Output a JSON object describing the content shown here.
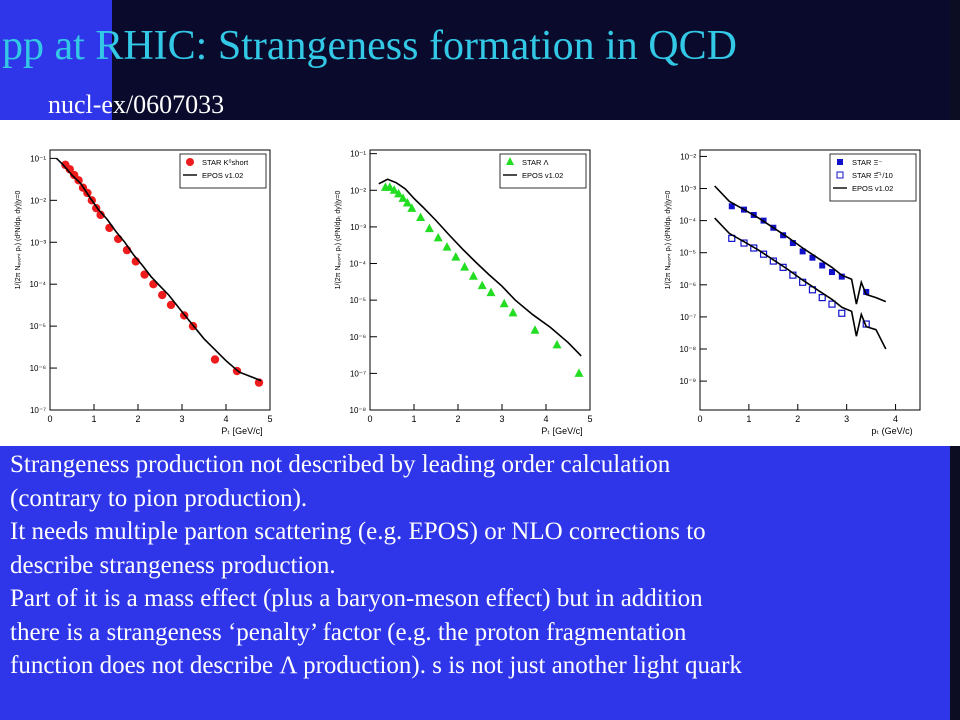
{
  "title": "pp at RHIC: Strangeness formation in QCD",
  "reference": "nucl-ex/0607033",
  "body_lines": [
    "Strangeness production not described by leading order calculation",
    "(contrary to pion production).",
    "It needs multiple parton scattering (e.g. EPOS) or NLO corrections  to",
    "describe strangeness production.",
    "Part of it is a mass effect (plus a baryon-meson effect) but in addition",
    "there is a strangeness ‘penalty’ factor (e.g. the proton fragmentation",
    "function does not describe Λ production). s is not just another light quark"
  ],
  "chart_data": [
    {
      "type": "scatter",
      "xlabel": "Pₜ [GeV/c]",
      "ylabel": "1/(2π Nₑᵥₑₙₜ pₜ) (d²N/dpₜ dy)|y=0",
      "xlim": [
        0,
        5
      ],
      "ylim_log10": [
        -7,
        -0.8
      ],
      "yscale": "log",
      "xticks": [
        "0",
        "1",
        "2",
        "3",
        "4",
        "5"
      ],
      "yticks": [
        "10⁻⁷",
        "10⁻⁶",
        "10⁻⁵",
        "10⁻⁴",
        "10⁻³",
        "10⁻²",
        "10⁻¹"
      ],
      "legend_position": "top-right",
      "series": [
        {
          "name": "STAR K⁰short",
          "marker": "filled-circle",
          "color": "#ee1c1c",
          "x": [
            0.35,
            0.45,
            0.55,
            0.65,
            0.75,
            0.85,
            0.95,
            1.05,
            1.15,
            1.35,
            1.55,
            1.75,
            1.95,
            2.15,
            2.35,
            2.55,
            2.75,
            3.05,
            3.25,
            3.75,
            4.25,
            4.75
          ],
          "y": [
            0.07,
            0.055,
            0.04,
            0.03,
            0.02,
            0.015,
            0.01,
            0.0065,
            0.0045,
            0.0022,
            0.0012,
            0.00065,
            0.00035,
            0.00017,
            0.0001,
            5.5e-05,
            3.2e-05,
            1.8e-05,
            1e-05,
            1.6e-06,
            8.5e-07,
            4.5e-07
          ]
        },
        {
          "name": "EPOS v1.02",
          "marker": "line",
          "color": "#000000",
          "x": [
            0.15,
            0.3,
            0.5,
            0.7,
            0.9,
            1.1,
            1.3,
            1.5,
            1.7,
            1.9,
            2.1,
            2.3,
            2.5,
            2.7,
            3.0,
            3.5,
            4.0,
            4.3,
            4.8
          ],
          "y": [
            0.1,
            0.07,
            0.04,
            0.025,
            0.012,
            0.006,
            0.0035,
            0.0018,
            0.001,
            0.0005,
            0.00028,
            0.00015,
            9e-05,
            5.5e-05,
            2.2e-05,
            5e-06,
            1.5e-06,
            8e-07,
            5e-07
          ]
        }
      ]
    },
    {
      "type": "scatter",
      "xlabel": "Pₜ [GeV/c]",
      "ylabel": "1/(2π Nₑᵥₑₙₜ pₜ) (d²N/dpₜ dy)|y=0",
      "xlim": [
        0,
        5
      ],
      "ylim_log10": [
        -8,
        -0.9
      ],
      "yscale": "log",
      "xticks": [
        "0",
        "1",
        "2",
        "3",
        "4",
        "5"
      ],
      "yticks": [
        "10⁻⁸",
        "10⁻⁷",
        "10⁻⁶",
        "10⁻⁵",
        "10⁻⁴",
        "10⁻³",
        "10⁻²",
        "10⁻¹"
      ],
      "legend_position": "top-right",
      "series": [
        {
          "name": "STAR Λ",
          "marker": "filled-triangle",
          "color": "#22dd22",
          "x": [
            0.35,
            0.45,
            0.55,
            0.65,
            0.75,
            0.85,
            0.95,
            1.15,
            1.35,
            1.55,
            1.75,
            1.95,
            2.15,
            2.35,
            2.55,
            2.75,
            3.05,
            3.25,
            3.75,
            4.25,
            4.75
          ],
          "y": [
            0.012,
            0.012,
            0.01,
            0.008,
            0.006,
            0.0045,
            0.0032,
            0.0018,
            0.0009,
            0.0005,
            0.00028,
            0.00015,
            8e-05,
            4.5e-05,
            2.5e-05,
            1.6e-05,
            8e-06,
            4.5e-06,
            1.5e-06,
            6e-07,
            1e-07
          ]
        },
        {
          "name": "EPOS v1.02",
          "marker": "line",
          "color": "#000000",
          "x": [
            0.2,
            0.4,
            0.6,
            0.8,
            1.0,
            1.2,
            1.5,
            1.8,
            2.1,
            2.4,
            2.7,
            3.0,
            3.3,
            3.7,
            4.1,
            4.5,
            4.8
          ],
          "y": [
            0.015,
            0.02,
            0.016,
            0.011,
            0.006,
            0.0035,
            0.0015,
            0.0006,
            0.00025,
            0.00011,
            5e-05,
            2.4e-05,
            1e-05,
            4e-06,
            1.8e-06,
            7e-07,
            3e-07
          ]
        }
      ]
    },
    {
      "type": "scatter",
      "xlabel": "pₜ (GeV/c)",
      "ylabel": "1/(2π Nₑᵥₑₙₜ pₜ) (d²N/dpₜ dy)|y=0",
      "xlim": [
        0,
        4.5
      ],
      "ylim_log10": [
        -9.9,
        -1.8
      ],
      "yscale": "log",
      "xticks": [
        "0",
        "1",
        "2",
        "3",
        "4"
      ],
      "yticks": [
        "10⁻⁹",
        "10⁻⁸",
        "10⁻⁷",
        "10⁻⁶",
        "10⁻⁵",
        "10⁻⁴",
        "10⁻³",
        "10⁻²"
      ],
      "legend_position": "top-right",
      "series": [
        {
          "name": "STAR Ξ⁻",
          "marker": "filled-square",
          "color": "#1111cc",
          "x": [
            0.65,
            0.9,
            1.1,
            1.3,
            1.5,
            1.7,
            1.9,
            2.1,
            2.3,
            2.5,
            2.7,
            2.9,
            3.4
          ],
          "y": [
            0.00028,
            0.00022,
            0.00015,
            0.0001,
            6e-05,
            3.5e-05,
            2e-05,
            1.1e-05,
            7e-06,
            4e-06,
            2.5e-06,
            1.8e-06,
            6e-07
          ]
        },
        {
          "name": "STAR Ξ̅⁺/10",
          "marker": "open-square",
          "color": "#1111cc",
          "x": [
            0.65,
            0.9,
            1.1,
            1.3,
            1.5,
            1.7,
            1.9,
            2.1,
            2.3,
            2.5,
            2.7,
            2.9,
            3.4
          ],
          "y": [
            2.8e-05,
            2e-05,
            1.4e-05,
            9e-06,
            5.5e-06,
            3.5e-06,
            2e-06,
            1.2e-06,
            7e-07,
            4e-07,
            2.5e-07,
            1.3e-07,
            6e-08
          ]
        },
        {
          "name": "EPOS v1.02",
          "marker": "line",
          "color": "#000000",
          "x": [
            0.3,
            0.6,
            0.9,
            1.2,
            1.5,
            1.8,
            2.1,
            2.4,
            2.7,
            2.9,
            3.1,
            3.2,
            3.3,
            3.4,
            3.6,
            3.8
          ],
          "y": [
            0.0012,
            0.0004,
            0.00022,
            0.00012,
            6e-05,
            3e-05,
            1.4e-05,
            7e-06,
            3.5e-06,
            2e-06,
            1.5e-06,
            2.5e-07,
            1.2e-06,
            5e-07,
            4e-07,
            3e-07
          ]
        },
        {
          "name": "",
          "marker": "line",
          "color": "#000000",
          "x": [
            0.3,
            0.6,
            0.9,
            1.2,
            1.5,
            1.8,
            2.1,
            2.4,
            2.7,
            2.9,
            3.1,
            3.2,
            3.3,
            3.4,
            3.6,
            3.8
          ],
          "y": [
            0.00012,
            4e-05,
            2.2e-05,
            1.2e-05,
            6e-06,
            3e-06,
            1.4e-06,
            7e-07,
            3.5e-07,
            2e-07,
            1.5e-07,
            2.5e-08,
            1.2e-07,
            5e-08,
            4e-08,
            1e-08
          ]
        }
      ]
    }
  ]
}
